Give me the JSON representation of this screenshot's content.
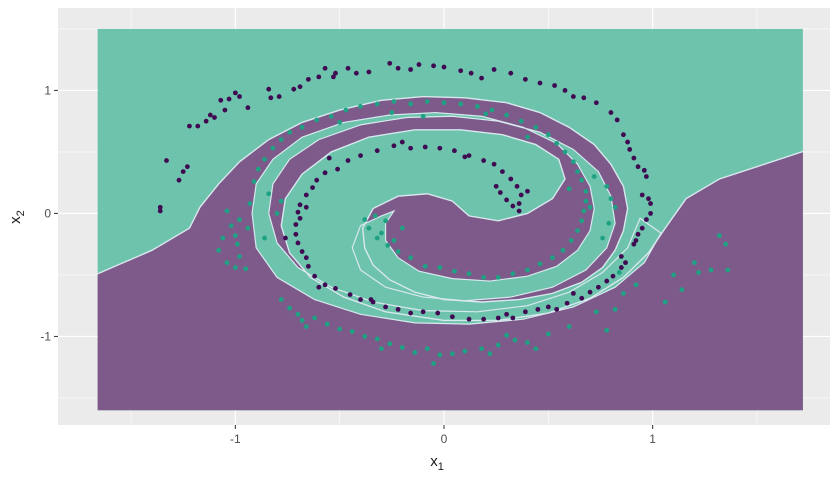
{
  "chart_data": {
    "type": "scatter",
    "title": "",
    "xlabel": "x",
    "xlabel_subscript": "1",
    "ylabel": "x",
    "ylabel_subscript": "2",
    "xlim": [
      -1.85,
      1.85
    ],
    "ylim": [
      -1.72,
      1.67
    ],
    "xticks": [
      -1,
      0,
      1
    ],
    "yticks": [
      -1,
      0,
      1
    ],
    "xtick_labels": [
      "-1",
      "0",
      "1"
    ],
    "ytick_labels": [
      "-1",
      "0",
      "1"
    ],
    "grid": true,
    "legend": "none",
    "background": {
      "type": "classification_surface",
      "extent_x": [
        -1.66,
        1.72
      ],
      "extent_y": [
        -1.6,
        1.5
      ],
      "class_colors": [
        "#7d5a8a",
        "#6ec3ac"
      ],
      "decision_boundary_color": "#d8e8ee"
    },
    "series": [
      {
        "class": "spiral-a",
        "color": "#3f0a52",
        "points": [
          [
            -1.36,
            0.05
          ],
          [
            -1.36,
            0.02
          ],
          [
            -1.33,
            0.43
          ],
          [
            -1.27,
            0.27
          ],
          [
            -1.25,
            0.34
          ],
          [
            -1.23,
            0.38
          ],
          [
            -1.22,
            0.71
          ],
          [
            -1.18,
            0.71
          ],
          [
            -1.14,
            0.75
          ],
          [
            -1.12,
            0.8
          ],
          [
            -1.1,
            0.78
          ],
          [
            -1.07,
            0.92
          ],
          [
            -1.05,
            0.84
          ],
          [
            -1.03,
            0.93
          ],
          [
            -1.0,
            0.98
          ],
          [
            -0.98,
            0.95
          ],
          [
            -0.94,
            0.86
          ],
          [
            -0.84,
            1.01
          ],
          [
            -0.83,
            0.94
          ],
          [
            -0.79,
            0.95
          ],
          [
            -0.72,
            1.01
          ],
          [
            -0.69,
            1.03
          ],
          [
            -0.65,
            1.09
          ],
          [
            -0.6,
            1.11
          ],
          [
            -0.57,
            1.18
          ],
          [
            -0.53,
            1.11
          ],
          [
            -0.52,
            1.14
          ],
          [
            -0.46,
            1.18
          ],
          [
            -0.42,
            1.14
          ],
          [
            -0.36,
            1.15
          ],
          [
            -0.26,
            1.22
          ],
          [
            -0.22,
            1.18
          ],
          [
            -0.16,
            1.17
          ],
          [
            -0.12,
            1.21
          ],
          [
            -0.05,
            1.2
          ],
          [
            0.0,
            1.19
          ],
          [
            0.08,
            1.16
          ],
          [
            0.13,
            1.14
          ],
          [
            0.18,
            1.1
          ],
          [
            0.24,
            1.17
          ],
          [
            0.32,
            1.14
          ],
          [
            0.39,
            1.09
          ],
          [
            0.46,
            1.06
          ],
          [
            0.53,
            1.04
          ],
          [
            0.58,
            1.0
          ],
          [
            0.62,
            0.95
          ],
          [
            0.67,
            0.94
          ],
          [
            0.73,
            0.9
          ],
          [
            0.8,
            0.82
          ],
          [
            0.83,
            0.76
          ],
          [
            0.86,
            0.64
          ],
          [
            0.88,
            0.58
          ],
          [
            0.89,
            0.52
          ],
          [
            0.91,
            0.45
          ],
          [
            0.93,
            0.38
          ],
          [
            0.96,
            0.35
          ],
          [
            0.97,
            0.3
          ],
          [
            0.95,
            0.15
          ],
          [
            0.98,
            0.12
          ],
          [
            0.99,
            0.08
          ],
          [
            0.99,
            0.0
          ],
          [
            0.97,
            -0.05
          ],
          [
            0.95,
            -0.12
          ],
          [
            0.93,
            -0.17
          ],
          [
            0.92,
            -0.22
          ],
          [
            0.91,
            -0.25
          ],
          [
            0.87,
            -0.4
          ],
          [
            0.85,
            -0.44
          ],
          [
            0.81,
            -0.51
          ],
          [
            0.78,
            -0.55
          ],
          [
            0.74,
            -0.6
          ],
          [
            0.7,
            -0.64
          ],
          [
            0.66,
            -0.69
          ],
          [
            0.59,
            -0.73
          ],
          [
            0.54,
            -0.78
          ],
          [
            0.45,
            -0.78
          ],
          [
            0.39,
            -0.8
          ],
          [
            0.33,
            -0.85
          ],
          [
            0.26,
            -0.85
          ],
          [
            0.19,
            -0.86
          ],
          [
            0.12,
            -0.86
          ],
          [
            0.04,
            -0.84
          ],
          [
            -0.03,
            -0.81
          ],
          [
            -0.1,
            -0.8
          ],
          [
            -0.16,
            -0.81
          ],
          [
            -0.22,
            -0.78
          ],
          [
            -0.28,
            -0.76
          ],
          [
            -0.34,
            -0.72
          ],
          [
            -0.4,
            -0.7
          ],
          [
            -0.45,
            -0.66
          ],
          [
            -0.52,
            -0.61
          ],
          [
            -0.57,
            -0.58
          ],
          [
            -0.62,
            -0.51
          ],
          [
            -0.65,
            -0.43
          ],
          [
            -0.66,
            -0.36
          ],
          [
            -0.68,
            -0.31
          ],
          [
            -0.7,
            -0.24
          ],
          [
            -0.71,
            -0.17
          ],
          [
            -0.71,
            -0.09
          ],
          [
            -0.69,
            -0.04
          ],
          [
            -0.7,
            0.01
          ],
          [
            -0.69,
            0.07
          ],
          [
            -0.66,
            0.15
          ],
          [
            -0.63,
            0.21
          ],
          [
            -0.61,
            0.27
          ],
          [
            -0.57,
            0.33
          ],
          [
            -0.51,
            0.36
          ],
          [
            -0.46,
            0.43
          ],
          [
            -0.4,
            0.47
          ],
          [
            -0.32,
            0.51
          ],
          [
            -0.24,
            0.55
          ],
          [
            -0.16,
            0.53
          ],
          [
            -0.09,
            0.54
          ],
          [
            -0.02,
            0.53
          ],
          [
            0.05,
            0.51
          ],
          [
            0.12,
            0.47
          ],
          [
            0.19,
            0.43
          ],
          [
            0.24,
            0.4
          ],
          [
            0.28,
            0.34
          ],
          [
            0.32,
            0.28
          ],
          [
            0.35,
            0.22
          ],
          [
            0.37,
            0.15
          ],
          [
            0.36,
            0.08
          ],
          [
            0.33,
            0.06
          ],
          [
            0.3,
            0.11
          ],
          [
            0.27,
            0.17
          ],
          [
            0.25,
            0.22
          ],
          [
            0.36,
            0.02
          ],
          [
            0.4,
            0.18
          ],
          [
            -0.55,
            0.45
          ],
          [
            -0.76,
            -0.2
          ],
          [
            -0.6,
            -0.6
          ],
          [
            0.5,
            -0.76
          ],
          [
            0.85,
            -0.35
          ],
          [
            0.1,
            0.46
          ],
          [
            -0.2,
            0.58
          ],
          [
            -0.66,
            0.05
          ],
          [
            0.3,
            -0.82
          ],
          [
            -0.35,
            -0.7
          ],
          [
            0.62,
            -0.65
          ]
        ]
      },
      {
        "class": "spiral-b",
        "color": "#1fa184",
        "points": [
          [
            -1.04,
            0.02
          ],
          [
            -1.02,
            -0.1
          ],
          [
            -1.0,
            -0.18
          ],
          [
            -0.99,
            -0.25
          ],
          [
            -0.98,
            -0.35
          ],
          [
            -1.0,
            -0.44
          ],
          [
            -1.04,
            -0.4
          ],
          [
            -1.08,
            -0.3
          ],
          [
            -0.95,
            -0.45
          ],
          [
            -0.93,
            0.08
          ],
          [
            -0.91,
            0.26
          ],
          [
            -0.89,
            0.36
          ],
          [
            -0.86,
            0.44
          ],
          [
            -0.82,
            0.53
          ],
          [
            -0.78,
            0.6
          ],
          [
            -0.74,
            0.66
          ],
          [
            -0.68,
            0.7
          ],
          [
            -0.61,
            0.76
          ],
          [
            -0.54,
            0.79
          ],
          [
            -0.47,
            0.84
          ],
          [
            -0.4,
            0.87
          ],
          [
            -0.32,
            0.89
          ],
          [
            -0.24,
            0.91
          ],
          [
            -0.16,
            0.89
          ],
          [
            -0.08,
            0.91
          ],
          [
            0.0,
            0.9
          ],
          [
            0.08,
            0.89
          ],
          [
            0.16,
            0.87
          ],
          [
            0.23,
            0.84
          ],
          [
            0.3,
            0.8
          ],
          [
            0.37,
            0.75
          ],
          [
            0.44,
            0.7
          ],
          [
            0.5,
            0.64
          ],
          [
            0.54,
            0.57
          ],
          [
            0.58,
            0.5
          ],
          [
            0.62,
            0.42
          ],
          [
            0.64,
            0.34
          ],
          [
            0.66,
            0.27
          ],
          [
            0.68,
            0.18
          ],
          [
            0.68,
            0.1
          ],
          [
            0.67,
            0.02
          ],
          [
            0.66,
            -0.06
          ],
          [
            0.64,
            -0.14
          ],
          [
            0.61,
            -0.22
          ],
          [
            0.57,
            -0.3
          ],
          [
            0.52,
            -0.36
          ],
          [
            0.46,
            -0.41
          ],
          [
            0.4,
            -0.46
          ],
          [
            0.33,
            -0.49
          ],
          [
            0.26,
            -0.52
          ],
          [
            0.19,
            -0.52
          ],
          [
            0.12,
            -0.49
          ],
          [
            0.05,
            -0.47
          ],
          [
            -0.02,
            -0.44
          ],
          [
            -0.09,
            -0.43
          ],
          [
            -0.16,
            -0.36
          ],
          [
            -0.22,
            -0.31
          ],
          [
            -0.27,
            -0.26
          ],
          [
            -0.32,
            -0.2
          ],
          [
            -0.36,
            -0.12
          ],
          [
            -0.38,
            -0.05
          ],
          [
            -0.3,
            -0.16
          ],
          [
            -0.24,
            -0.22
          ],
          [
            -0.2,
            -0.12
          ],
          [
            -0.28,
            -0.06
          ],
          [
            -0.33,
            -0.02
          ],
          [
            0.73,
            -0.8
          ],
          [
            0.78,
            -0.95
          ],
          [
            0.82,
            -0.78
          ],
          [
            0.86,
            -0.65
          ],
          [
            0.92,
            -0.58
          ],
          [
            1.1,
            -0.5
          ],
          [
            1.14,
            -0.62
          ],
          [
            1.2,
            -0.4
          ],
          [
            1.28,
            -0.46
          ],
          [
            1.32,
            -0.18
          ],
          [
            1.35,
            -0.25
          ],
          [
            1.36,
            -0.46
          ],
          [
            1.22,
            -0.48
          ],
          [
            1.06,
            -0.72
          ],
          [
            0.6,
            -0.92
          ],
          [
            0.5,
            -0.98
          ],
          [
            0.4,
            -1.05
          ],
          [
            0.34,
            -1.03
          ],
          [
            0.26,
            -1.07
          ],
          [
            0.18,
            -1.1
          ],
          [
            0.1,
            -1.12
          ],
          [
            0.04,
            -1.14
          ],
          [
            -0.02,
            -1.15
          ],
          [
            -0.08,
            -1.1
          ],
          [
            -0.14,
            -1.13
          ],
          [
            -0.2,
            -1.09
          ],
          [
            -0.26,
            -1.06
          ],
          [
            -0.32,
            -1.02
          ],
          [
            -0.38,
            -1.0
          ],
          [
            -0.44,
            -0.96
          ],
          [
            -0.5,
            -0.94
          ],
          [
            -0.56,
            -0.9
          ],
          [
            -0.62,
            -0.85
          ],
          [
            -0.68,
            -0.87
          ],
          [
            -0.7,
            -0.82
          ],
          [
            -0.66,
            -0.92
          ],
          [
            -0.74,
            -0.77
          ],
          [
            -0.78,
            -0.7
          ],
          [
            0.3,
            -0.99
          ],
          [
            -0.05,
            -1.22
          ],
          [
            0.22,
            -1.14
          ],
          [
            0.44,
            -1.1
          ],
          [
            -0.3,
            -1.1
          ],
          [
            0.84,
            -0.48
          ],
          [
            0.8,
            0.12
          ],
          [
            0.82,
            0.05
          ],
          [
            0.79,
            -0.08
          ],
          [
            0.76,
            -0.2
          ],
          [
            0.72,
            0.3
          ],
          [
            0.78,
            0.22
          ],
          [
            -0.86,
            -0.2
          ],
          [
            -0.8,
            0.0
          ],
          [
            -0.78,
            0.1
          ],
          [
            -0.84,
            0.16
          ],
          [
            -0.98,
            -0.05
          ],
          [
            -0.94,
            -0.12
          ],
          [
            -0.1,
            0.79
          ],
          [
            0.2,
            0.81
          ],
          [
            0.4,
            0.62
          ],
          [
            -0.25,
            0.82
          ],
          [
            -0.5,
            0.74
          ],
          [
            0.6,
            0.2
          ],
          [
            -1.06,
            -0.2
          ],
          [
            0.7,
            0.05
          ]
        ]
      }
    ]
  }
}
